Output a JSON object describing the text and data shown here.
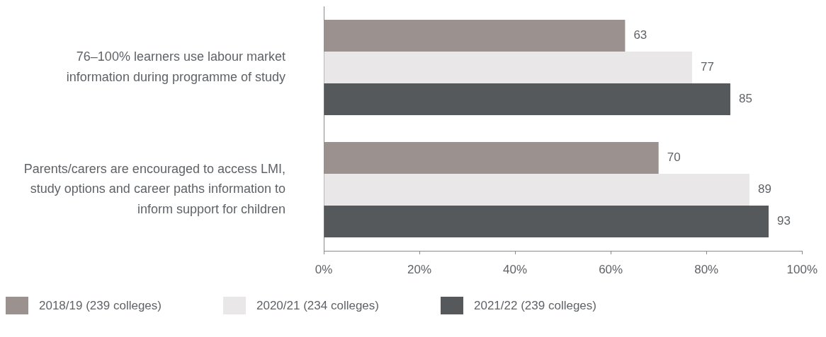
{
  "chart_data": {
    "type": "bar",
    "orientation": "horizontal",
    "categories": [
      "76–100% learners use labour market information during programme of study",
      "Parents/carers are encouraged to access LMI, study options and career paths information to inform support for children"
    ],
    "series": [
      {
        "name": "2018/19 (239 colleges)",
        "color": "#9b918e",
        "values": [
          63,
          70
        ]
      },
      {
        "name": "2020/21 (234 colleges)",
        "color": "#e9e7e8",
        "values": [
          77,
          89
        ]
      },
      {
        "name": "2021/22 (239 colleges)",
        "color": "#55595c",
        "values": [
          85,
          93
        ]
      }
    ],
    "xlim": [
      0,
      100
    ],
    "xticks": [
      {
        "value": 0,
        "label": "0%"
      },
      {
        "value": 20,
        "label": "20%"
      },
      {
        "value": 40,
        "label": "40%"
      },
      {
        "value": 60,
        "label": "60%"
      },
      {
        "value": 80,
        "label": "80%"
      },
      {
        "value": 100,
        "label": "100%"
      }
    ],
    "data_labels": true,
    "legend": "bottom"
  }
}
